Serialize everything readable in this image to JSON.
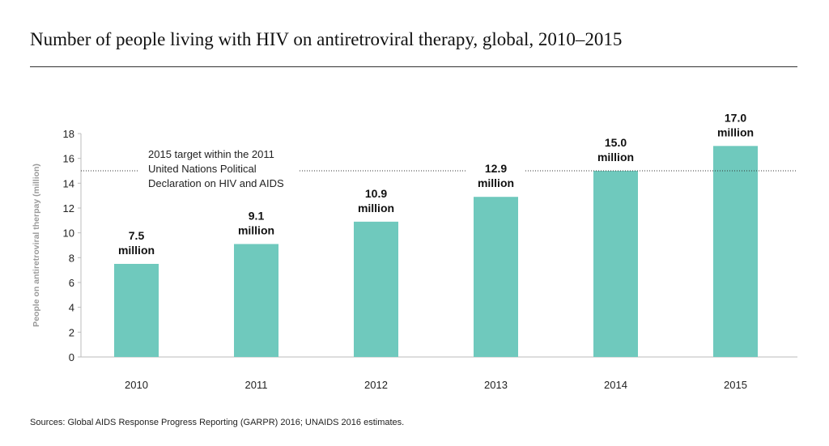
{
  "title": "Number of people living with HIV on antiretroviral therapy, global, 2010–2015",
  "source": "Sources: Global AIDS Response Progress Reporting (GARPR) 2016; UNAIDS 2016 estimates.",
  "colors": {
    "bar": "#6fc9bd",
    "axis_label": "#999999",
    "target_line": "#333333"
  },
  "chart_data": {
    "type": "bar",
    "title": "Number of people living with HIV on antiretroviral therapy, global, 2010–2015",
    "xlabel": "",
    "ylabel": "People on antiretroviral therpay (million)",
    "ylim": [
      0,
      18
    ],
    "yticks": [
      0,
      2,
      4,
      6,
      8,
      10,
      12,
      14,
      16,
      18
    ],
    "grid": false,
    "categories": [
      "2010",
      "2011",
      "2012",
      "2013",
      "2014",
      "2015"
    ],
    "values": [
      7.5,
      9.1,
      10.9,
      12.9,
      15.0,
      17.0
    ],
    "data_labels": [
      [
        "7.5",
        "million"
      ],
      [
        "9.1",
        "million"
      ],
      [
        "10.9",
        "million"
      ],
      [
        "12.9",
        "million"
      ],
      [
        "15.0",
        "million"
      ],
      [
        "17.0",
        "million"
      ]
    ],
    "reference_line": {
      "value": 15,
      "style": "dotted",
      "label": [
        "2015 target within the 2011",
        "United Nations Political",
        "Declaration on HIV and AIDS"
      ]
    }
  }
}
